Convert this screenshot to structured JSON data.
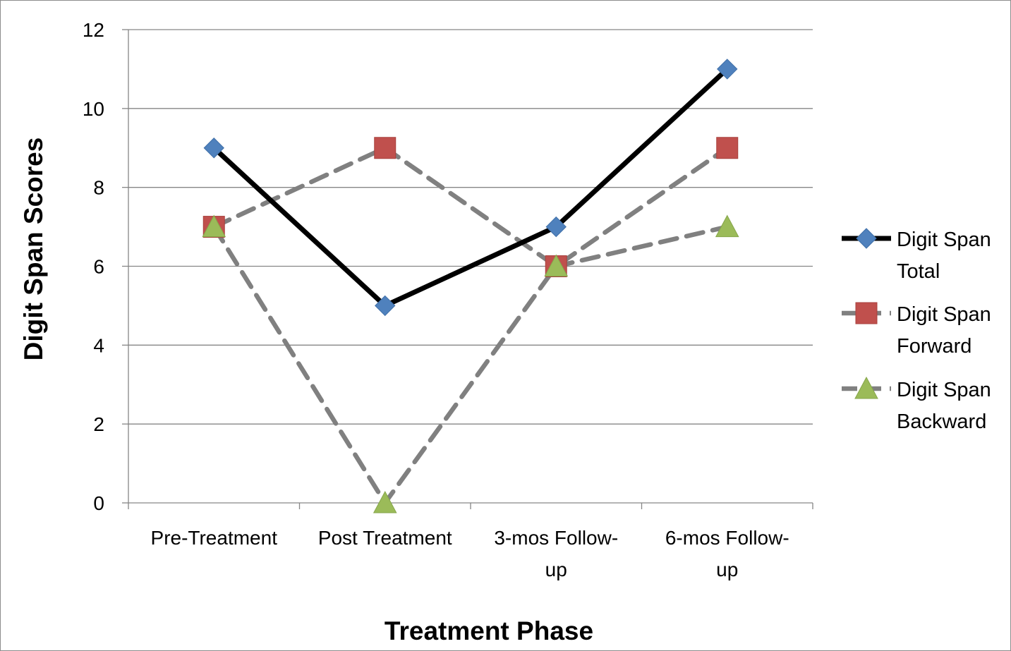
{
  "chart_data": {
    "type": "line",
    "categories": [
      [
        "Pre-Treatment"
      ],
      [
        "Post Treatment"
      ],
      [
        "3-mos Follow-",
        "up"
      ],
      [
        "6-mos Follow-",
        "up"
      ]
    ],
    "series": [
      {
        "name": [
          "Digit Span",
          "Total"
        ],
        "values": [
          9,
          5,
          7,
          11
        ],
        "line_color": "#000000",
        "line_style": "solid",
        "marker": "diamond",
        "marker_color": "#4f81bd"
      },
      {
        "name": [
          "Digit Span",
          "Forward"
        ],
        "values": [
          7,
          9,
          6,
          9
        ],
        "line_color": "#808080",
        "line_style": "dashed",
        "marker": "square",
        "marker_color": "#c0504d"
      },
      {
        "name": [
          "Digit Span",
          "Backward"
        ],
        "values": [
          7,
          0,
          6,
          7
        ],
        "line_color": "#808080",
        "line_style": "dashed",
        "marker": "triangle",
        "marker_color": "#9bbb59"
      }
    ],
    "xlabel": "Treatment Phase",
    "ylabel": "Digit Span Scores",
    "ylim": [
      0,
      12
    ],
    "yticks": [
      0,
      2,
      4,
      6,
      8,
      10,
      12
    ],
    "grid": "horizontal",
    "legend": "right"
  }
}
